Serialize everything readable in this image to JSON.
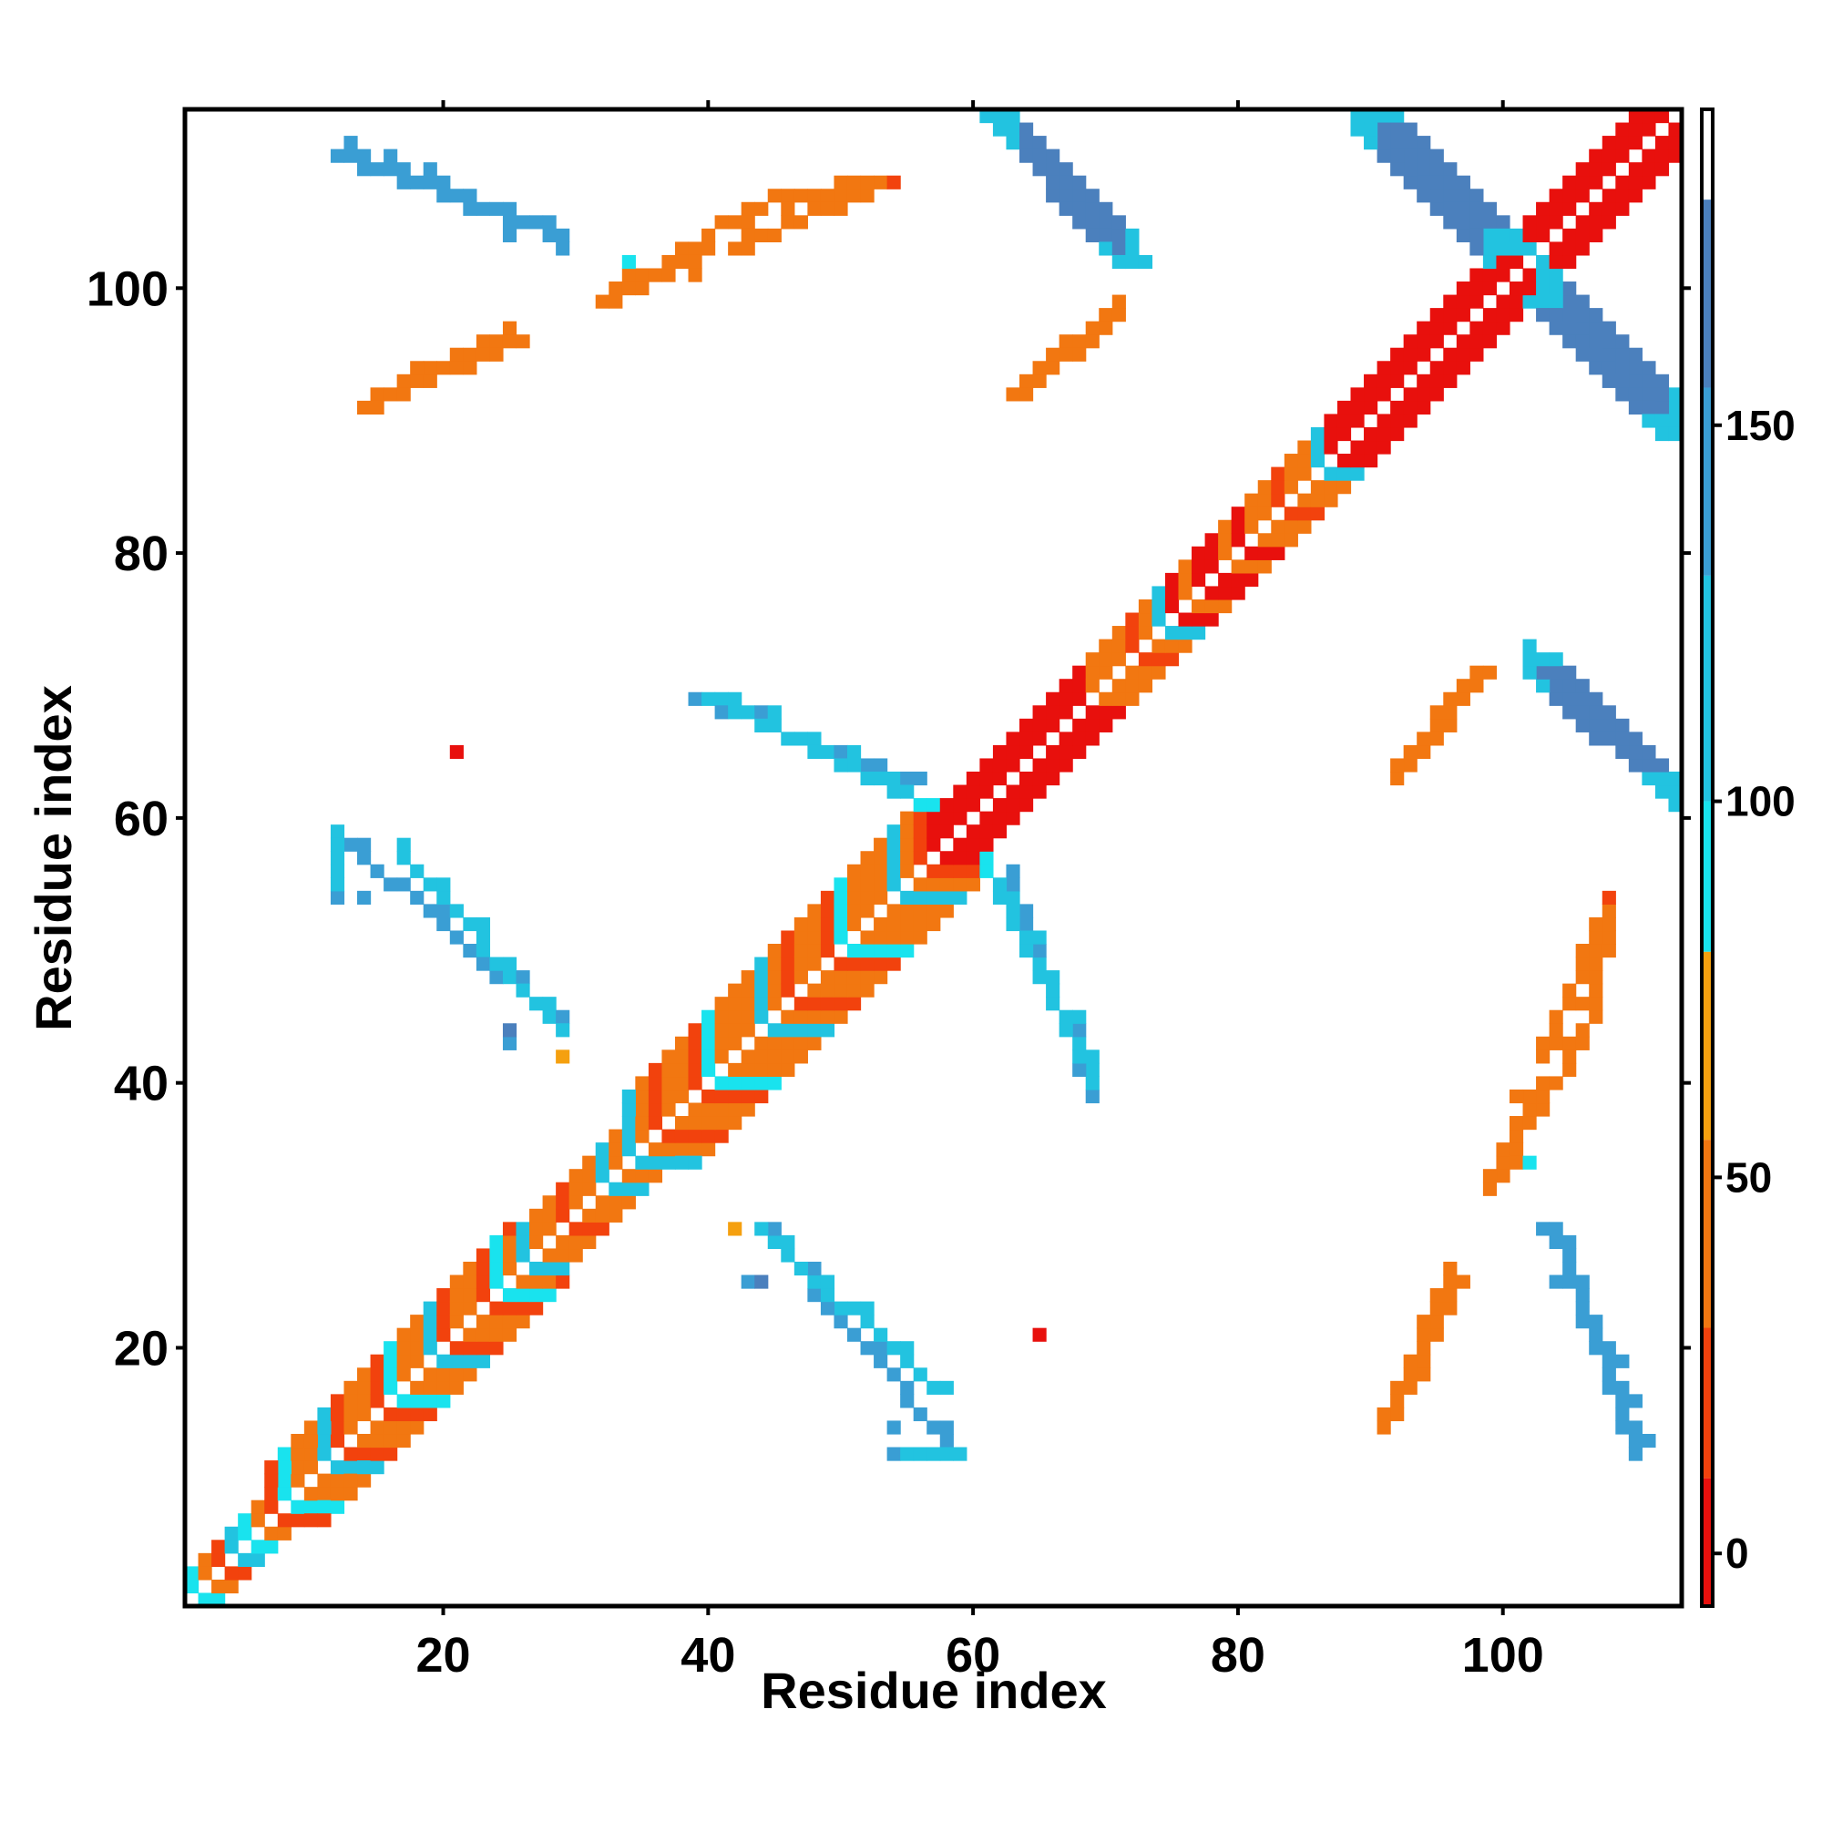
{
  "chart_data": {
    "type": "heatmap",
    "title": "",
    "xlabel": "Residue index",
    "ylabel": "Residue index",
    "xlim": [
      0.5,
      113.5
    ],
    "ylim": [
      0.5,
      113.5
    ],
    "xticks": [
      20,
      40,
      60,
      80,
      100
    ],
    "yticks": [
      20,
      40,
      60,
      80,
      100
    ],
    "grid": false,
    "colorbar": {
      "position": "right",
      "range": [
        -7,
        192
      ],
      "ticks": [
        0,
        50,
        100,
        150
      ],
      "bands": [
        {
          "from": -7,
          "to": 10,
          "color": "#e8100d"
        },
        {
          "from": 10,
          "to": 30,
          "color": "#f2420d"
        },
        {
          "from": 30,
          "to": 55,
          "color": "#f27711"
        },
        {
          "from": 55,
          "to": 80,
          "color": "#f5a00f"
        },
        {
          "from": 80,
          "to": 100,
          "color": "#19e3ee"
        },
        {
          "from": 100,
          "to": 130,
          "color": "#22c3e0"
        },
        {
          "from": 130,
          "to": 155,
          "color": "#3a9ed4"
        },
        {
          "from": 155,
          "to": 180,
          "color": "#4b80bd"
        },
        {
          "from": 180,
          "to": 192,
          "color": "#ffffff"
        }
      ]
    },
    "regions": [
      {
        "type": "diag",
        "from": 1,
        "to": 13,
        "offsets": [
          -2,
          -1,
          1,
          2
        ],
        "values": [
          45,
          25,
          100,
          90
        ]
      },
      {
        "type": "diag",
        "from": 8,
        "to": 28,
        "offsets": [
          -4,
          -3,
          -2,
          -1,
          1,
          2,
          3,
          4
        ],
        "values": [
          25,
          45,
          40,
          20,
          90,
          40,
          30,
          105
        ]
      },
      {
        "type": "diag",
        "from": 26,
        "to": 37,
        "offsets": [
          -3,
          -2,
          -1,
          1,
          2,
          3
        ],
        "values": [
          40,
          30,
          20,
          45,
          40,
          110
        ]
      },
      {
        "type": "diag",
        "from": 35,
        "to": 60,
        "offsets": [
          -5,
          -4,
          -3,
          -2,
          -1,
          1,
          2,
          3,
          4,
          5
        ],
        "values": [
          30,
          20,
          45,
          40,
          25,
          90,
          40,
          30,
          45,
          100
        ]
      },
      {
        "type": "diag",
        "from": 58,
        "to": 72,
        "offsets": [
          -3,
          -2,
          -1,
          1,
          2,
          3
        ],
        "values": [
          0,
          5,
          0,
          0,
          5,
          0
        ]
      },
      {
        "type": "diag",
        "from": 70,
        "to": 78,
        "offsets": [
          -3,
          -2,
          -1,
          1,
          2,
          3
        ],
        "values": [
          40,
          30,
          45,
          20,
          40,
          105
        ]
      },
      {
        "type": "diag",
        "from": 76,
        "to": 84,
        "offsets": [
          -3,
          -2,
          -1,
          1,
          2,
          3
        ],
        "values": [
          0,
          30,
          0,
          0,
          40,
          0
        ]
      },
      {
        "type": "diag",
        "from": 82,
        "to": 90,
        "offsets": [
          -3,
          -2,
          -1,
          1,
          2,
          3
        ],
        "values": [
          30,
          45,
          20,
          40,
          30,
          100
        ]
      },
      {
        "type": "diag",
        "from": 88,
        "to": 113,
        "offsets": [
          -3,
          -2,
          -1,
          1,
          2,
          3
        ],
        "values": [
          0,
          5,
          0,
          0,
          5,
          0
        ]
      },
      {
        "type": "band",
        "from": [
          61,
          113
        ],
        "to": [
          71,
          102
        ],
        "width": 3,
        "value": 160,
        "endValue": 115
      },
      {
        "type": "band",
        "from": [
          90,
          113
        ],
        "to": [
          100,
          103
        ],
        "width": 3,
        "value": 160,
        "endValue": 115
      },
      {
        "type": "band",
        "from": [
          102,
          99
        ],
        "to": [
          112,
          89
        ],
        "width": 3,
        "value": 160,
        "endValue": 115
      },
      {
        "type": "band",
        "from": [
          102,
          72
        ],
        "to": [
          112,
          62
        ],
        "width": 3,
        "value": 160,
        "endValue": 115
      },
      {
        "type": "line",
        "from": [
          63,
          92
        ],
        "to": [
          71,
          99
        ],
        "value": 40
      },
      {
        "type": "line",
        "from": [
          92,
          64
        ],
        "to": [
          98,
          71
        ],
        "value": 40
      },
      {
        "type": "line",
        "from": [
          14,
          91
        ],
        "to": [
          25,
          97
        ],
        "value": 40
      },
      {
        "type": "line",
        "from": [
          32,
          99
        ],
        "to": [
          45,
          107
        ],
        "value": 40
      },
      {
        "type": "line",
        "from": [
          45,
          107
        ],
        "to": [
          54,
          108
        ],
        "value": 30
      },
      {
        "type": "line",
        "from": [
          12,
          110
        ],
        "to": [
          29,
          104
        ],
        "value": 140
      },
      {
        "type": "line",
        "from": [
          12,
          59
        ],
        "to": [
          29,
          44
        ],
        "value": 130
      },
      {
        "type": "line",
        "from": [
          39,
          69
        ],
        "to": [
          55,
          63
        ],
        "value": 130
      },
      {
        "type": "line",
        "from": [
          62,
          55
        ],
        "to": [
          69,
          40
        ],
        "value": 125
      },
      {
        "type": "line",
        "from": [
          44,
          29
        ],
        "to": [
          57,
          17
        ],
        "value": 120
      },
      {
        "type": "line",
        "from": [
          54,
          12
        ],
        "to": [
          59,
          12
        ],
        "value": 110
      },
      {
        "type": "line",
        "from": [
          91,
          14
        ],
        "to": [
          96,
          26
        ],
        "value": 40
      },
      {
        "type": "line",
        "from": [
          99,
          33
        ],
        "to": [
          103,
          40
        ],
        "value": 40
      },
      {
        "type": "line",
        "from": [
          103,
          42
        ],
        "to": [
          108,
          54
        ],
        "value": 40
      },
      {
        "type": "line",
        "from": [
          104,
          29
        ],
        "to": [
          110,
          12
        ],
        "value": 140
      }
    ],
    "points": [
      [
        21,
        65,
        0
      ],
      [
        65,
        21,
        0
      ],
      [
        54,
        108,
        10
      ],
      [
        108,
        54,
        10
      ],
      [
        34,
        102,
        95
      ],
      [
        102,
        34,
        95
      ],
      [
        39,
        101,
        45
      ],
      [
        101,
        39,
        45
      ],
      [
        29,
        103,
        150
      ],
      [
        103,
        29,
        150
      ],
      [
        25,
        104,
        150
      ],
      [
        104,
        25,
        150
      ],
      [
        14,
        54,
        150
      ],
      [
        54,
        14,
        150
      ],
      [
        21,
        51,
        150
      ],
      [
        51,
        21,
        150
      ],
      [
        25,
        43,
        150
      ],
      [
        43,
        25,
        150
      ],
      [
        44,
        25,
        155
      ],
      [
        25,
        44,
        155
      ],
      [
        54,
        12,
        150
      ],
      [
        12,
        54,
        150
      ],
      [
        29,
        42,
        60
      ],
      [
        42,
        29,
        60
      ]
    ]
  }
}
